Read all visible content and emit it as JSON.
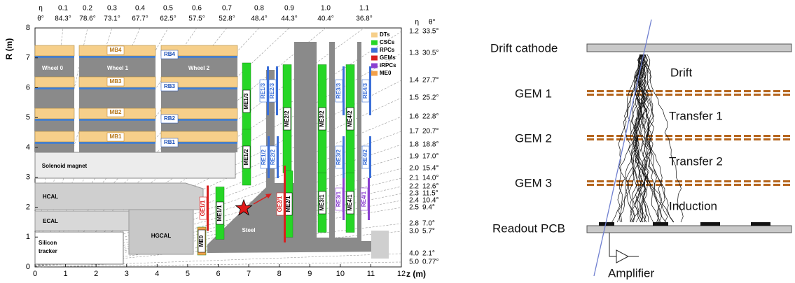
{
  "cms_diagram": {
    "y_axis_label": "R (m)",
    "x_axis_label": "z (m)",
    "x_ticks": [
      "0",
      "1",
      "2",
      "3",
      "4",
      "5",
      "6",
      "7",
      "8",
      "9",
      "10",
      "11",
      "12"
    ],
    "y_ticks": [
      "0",
      "1",
      "2",
      "3",
      "4",
      "5",
      "6",
      "7",
      "8"
    ],
    "eta_header": "η",
    "theta_header": "θ°",
    "top_scale": [
      {
        "eta": "0.1",
        "theta": "84.3°"
      },
      {
        "eta": "0.2",
        "theta": "78.6°"
      },
      {
        "eta": "0.3",
        "theta": "73.1°"
      },
      {
        "eta": "0.4",
        "theta": "67.7°"
      },
      {
        "eta": "0.5",
        "theta": "62.5°"
      },
      {
        "eta": "0.6",
        "theta": "57.5°"
      },
      {
        "eta": "0.7",
        "theta": "52.8°"
      },
      {
        "eta": "0.8",
        "theta": "48.4°"
      },
      {
        "eta": "0.9",
        "theta": "44.3°"
      },
      {
        "eta": "1.0",
        "theta": "40.4°"
      },
      {
        "eta": "1.1",
        "theta": "36.8°"
      }
    ],
    "side_scale": [
      {
        "eta": "1.2",
        "theta": "33.5°"
      },
      {
        "eta": "1.3",
        "theta": "30.5°"
      },
      {
        "eta": "1.4",
        "theta": "27.7°"
      },
      {
        "eta": "1.5",
        "theta": "25.2°"
      },
      {
        "eta": "1.6",
        "theta": "22.8°"
      },
      {
        "eta": "1.7",
        "theta": "20.7°"
      },
      {
        "eta": "1.8",
        "theta": "18.8°"
      },
      {
        "eta": "1.9",
        "theta": "17.0°"
      },
      {
        "eta": "2.0",
        "theta": "15.4°"
      },
      {
        "eta": "2.1",
        "theta": "14.0°"
      },
      {
        "eta": "2.2",
        "theta": "12.6°"
      },
      {
        "eta": "2.3",
        "theta": "11.5°"
      },
      {
        "eta": "2.4",
        "theta": "10.4°"
      },
      {
        "eta": "2.5",
        "theta": "9.4°"
      },
      {
        "eta": "2.8",
        "theta": "7.0°"
      },
      {
        "eta": "3.0",
        "theta": "5.7°"
      },
      {
        "eta": "4.0",
        "theta": "2.1°"
      },
      {
        "eta": "5.0",
        "theta": "0.77°"
      }
    ],
    "legend": [
      "DTs",
      "CSCs",
      "RPCs",
      "GEMs",
      "iRPCs",
      "ME0"
    ],
    "region_labels": [
      "Wheel 0",
      "Wheel 1",
      "Wheel 2",
      "MB4",
      "MB3",
      "MB2",
      "MB1",
      "RB4",
      "RB3",
      "RB2",
      "RB1",
      "Solenoid magnet",
      "HCAL",
      "ECAL",
      "HGCAL",
      "Steel"
    ],
    "silicon_tracker": [
      "Silicon",
      "tracker"
    ],
    "chamber_labels": [
      "ME1/3",
      "RE1/3",
      "RE2/3",
      "ME2/2",
      "ME3/2",
      "RE3/3",
      "ME4/2",
      "RE4/3",
      "ME1/2",
      "RE1/2",
      "RE2/2",
      "RE3/2",
      "RE4/2",
      "ME2/1",
      "ME3/1",
      "RE3/1",
      "ME4/1",
      "RE4/1",
      "GE1/1",
      "ME1/1",
      "GE2/1",
      "ME0"
    ]
  },
  "gem_diagram": {
    "drift_cathode": "Drift cathode",
    "gem1": "GEM 1",
    "gem2": "GEM 2",
    "gem3": "GEM 3",
    "drift": "Drift",
    "transfer1": "Transfer 1",
    "transfer2": "Transfer 2",
    "induction": "Induction",
    "readout": "Readout PCB",
    "amplifier": "Amplifier"
  }
}
